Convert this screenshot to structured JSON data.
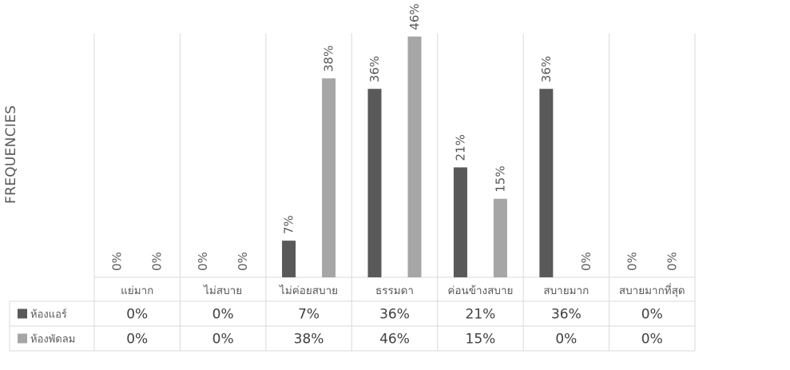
{
  "chart_data": {
    "type": "bar",
    "title": "",
    "xlabel": "",
    "ylabel": "FREQUENCIES",
    "ylim": [
      0,
      0.5
    ],
    "grid": false,
    "legend": "data table",
    "categories": [
      "แย่มาก",
      "ไม่สบาย",
      "ไม่ค่อยสบาย",
      "ธรรมดา",
      "ค่อนข้างสบาย",
      "สบายมาก",
      "สบายมากที่สุด"
    ],
    "series": [
      {
        "name": "ห้องแอร์",
        "values": [
          0,
          0,
          0.07,
          0.36,
          0.21,
          0.36,
          0
        ],
        "labels": [
          "0%",
          "0%",
          "7%",
          "36%",
          "21%",
          "36%",
          "0%"
        ],
        "color": "#595959"
      },
      {
        "name": "ห้องพัดลม",
        "values": [
          0,
          0,
          0.38,
          0.46,
          0.15,
          0,
          0
        ],
        "labels": [
          "0%",
          "0%",
          "38%",
          "46%",
          "15%",
          "0%",
          "0%"
        ],
        "color": "#a6a6a6"
      }
    ]
  }
}
